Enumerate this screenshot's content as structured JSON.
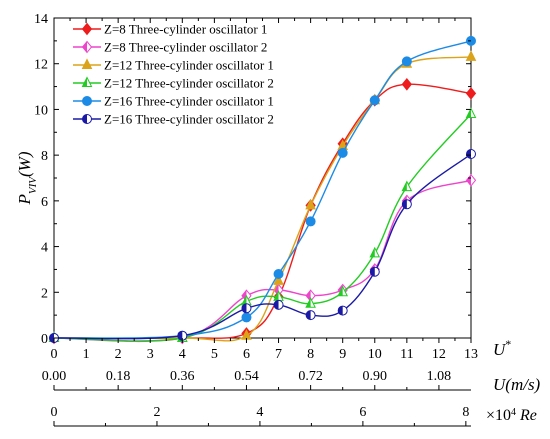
{
  "chart_data": {
    "type": "line",
    "ylabel_main": "P",
    "ylabel_sub": "VIV",
    "ylabel_unit": "(W)",
    "ylim": [
      0,
      14
    ],
    "yticks": [
      "0",
      "2",
      "4",
      "6",
      "8",
      "10",
      "12",
      "14"
    ],
    "xlim": [
      0,
      13
    ],
    "xticks": [
      "0",
      "1",
      "2",
      "3",
      "4",
      "5",
      "6",
      "7",
      "8",
      "9",
      "10",
      "11",
      "12",
      "13"
    ],
    "xlabel": "U",
    "xlabel_sup": "*",
    "u_axis": {
      "ticks": [
        "0.00",
        "0.18",
        "0.36",
        "0.54",
        "0.72",
        "0.90",
        "1.08"
      ],
      "tick_positions": [
        0,
        2,
        4,
        6,
        8,
        10,
        12
      ],
      "label": "U(m/s)"
    },
    "re_axis": {
      "ticks": [
        "0",
        "2",
        "4",
        "6",
        "8"
      ],
      "values": [
        0,
        2,
        4,
        6,
        8
      ],
      "max": 8.1,
      "label_prefix": "×10",
      "label_exp": "4",
      "label_re": "Re"
    },
    "legend_position": "top-left",
    "series": [
      {
        "name": "Z=8 Three-cylinder oscillator 1",
        "color": "#ee1c1c",
        "marker": "diamond",
        "x": [
          0,
          4,
          6,
          7,
          8,
          9,
          10,
          11,
          13
        ],
        "y": [
          0,
          0,
          0.2,
          1.8,
          5.8,
          8.5,
          10.4,
          11.1,
          10.7
        ]
      },
      {
        "name": "Z=8 Three-cylinder oscillator 2",
        "color": "#ee44cc",
        "marker": "diamond-half",
        "x": [
          0,
          4,
          6,
          7,
          8,
          9,
          10,
          11,
          13
        ],
        "y": [
          0,
          0,
          1.85,
          2.1,
          1.85,
          2.1,
          3.0,
          6.0,
          6.9
        ]
      },
      {
        "name": "Z=12 Three-cylinder oscillator 1",
        "color": "#dba31a",
        "marker": "triangle",
        "x": [
          0,
          4,
          6,
          7,
          8,
          9,
          10,
          11,
          13
        ],
        "y": [
          0,
          0,
          0.1,
          2.5,
          5.8,
          8.4,
          10.4,
          12.0,
          12.3
        ]
      },
      {
        "name": "Z=12 Three-cylinder oscillator 2",
        "color": "#22cc22",
        "marker": "triangle-half",
        "x": [
          0,
          4,
          6,
          7,
          8,
          9,
          10,
          11,
          13
        ],
        "y": [
          0,
          0,
          1.6,
          1.8,
          1.5,
          2.0,
          3.7,
          6.6,
          9.8
        ]
      },
      {
        "name": "Z=16 Three-cylinder oscillator 1",
        "color": "#1c8be6",
        "marker": "circle",
        "x": [
          0,
          4,
          6,
          7,
          8,
          9,
          10,
          11,
          13
        ],
        "y": [
          0,
          0.1,
          0.9,
          2.8,
          5.1,
          8.1,
          10.4,
          12.1,
          13.0
        ]
      },
      {
        "name": "Z=16 Three-cylinder oscillator 2",
        "color": "#1a1aa6",
        "marker": "circle-half",
        "x": [
          0,
          4,
          6,
          7,
          8,
          9,
          10,
          11,
          13
        ],
        "y": [
          0,
          0.1,
          1.3,
          1.45,
          1.0,
          1.2,
          2.9,
          5.85,
          8.05
        ]
      }
    ]
  }
}
